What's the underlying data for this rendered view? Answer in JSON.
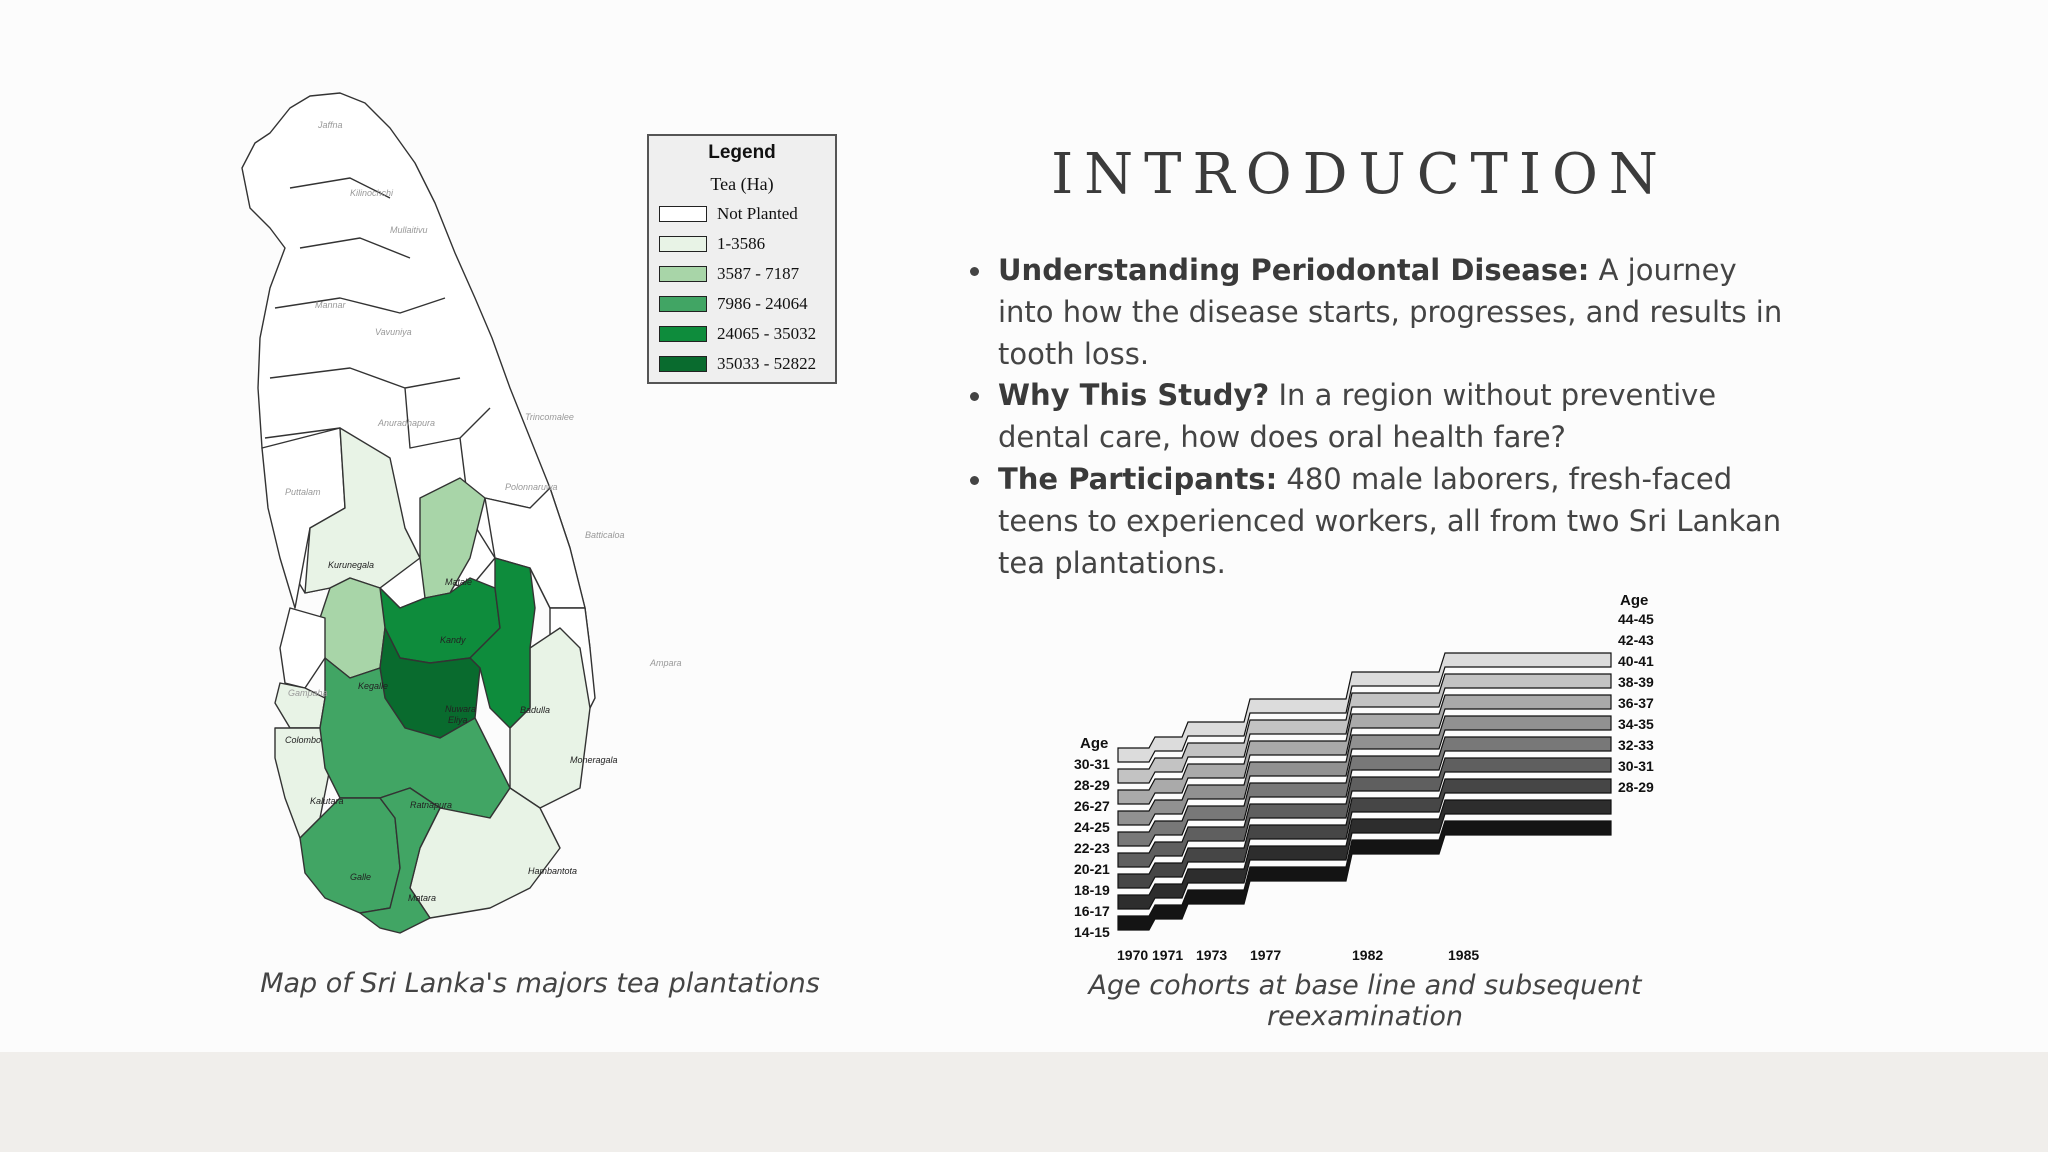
{
  "slide": {
    "title": "INTRODUCTION",
    "bullets": [
      {
        "bold": "Understanding Periodontal Disease:",
        "text": " A journey into how the disease starts, progresses, and results in tooth loss."
      },
      {
        "bold": "Why This Study?",
        "text": " In a region without preventive dental care, how does oral health fare?"
      },
      {
        "bold": "The Participants:",
        "text": " 480 male laborers, fresh-faced teens to experienced workers, all from two Sri Lankan tea plantations."
      }
    ]
  },
  "map": {
    "caption": "Map of Sri Lanka's majors tea plantations",
    "legend": {
      "title": "Legend",
      "subtitle": "Tea (Ha)",
      "items": [
        {
          "label": "Not Planted",
          "color": "#ffffff"
        },
        {
          "label": "1-3586",
          "color": "#e8f3e6"
        },
        {
          "label": "3587 - 7187",
          "color": "#a8d5a8"
        },
        {
          "label": "7986 - 24064",
          "color": "#41a564"
        },
        {
          "label": "24065 - 35032",
          "color": "#0e8c3c"
        },
        {
          "label": "35033 - 52822",
          "color": "#096b2e"
        }
      ]
    },
    "districts": [
      {
        "name": "Jaffna",
        "class": "Not Planted"
      },
      {
        "name": "Kilinochchi",
        "class": "Not Planted"
      },
      {
        "name": "Mullaitivu",
        "class": "Not Planted"
      },
      {
        "name": "Mannar",
        "class": "Not Planted"
      },
      {
        "name": "Vavuniya",
        "class": "Not Planted"
      },
      {
        "name": "Trincomalee",
        "class": "Not Planted"
      },
      {
        "name": "Anuradhapura",
        "class": "Not Planted"
      },
      {
        "name": "Polonnaruwa",
        "class": "Not Planted"
      },
      {
        "name": "Puttalam",
        "class": "Not Planted"
      },
      {
        "name": "Batticaloa",
        "class": "Not Planted"
      },
      {
        "name": "Kurunegala",
        "class": "1-3586"
      },
      {
        "name": "Matale",
        "class": "3587 - 7187"
      },
      {
        "name": "Ampara",
        "class": "Not Planted"
      },
      {
        "name": "Kandy",
        "class": "24065 - 35032"
      },
      {
        "name": "Kegalle",
        "class": "3587 - 7187"
      },
      {
        "name": "Gampaha",
        "class": "Not Planted"
      },
      {
        "name": "Nuwara Eliya",
        "class": "35033 - 52822"
      },
      {
        "name": "Badulla",
        "class": "24065 - 35032"
      },
      {
        "name": "Colombo",
        "class": "1-3586"
      },
      {
        "name": "Moneragala",
        "class": "1-3586"
      },
      {
        "name": "Kalutara",
        "class": "1-3586"
      },
      {
        "name": "Ratnapura",
        "class": "7986 - 24064"
      },
      {
        "name": "Hambantota",
        "class": "1-3586"
      },
      {
        "name": "Galle",
        "class": "7986 - 24064"
      },
      {
        "name": "Matara",
        "class": "7986 - 24064"
      }
    ]
  },
  "cohort_chart": {
    "caption": "Age cohorts at base line and subsequent reexamination",
    "left_header": "Age",
    "right_header": "Age",
    "left_ages": [
      "30-31",
      "28-29",
      "26-27",
      "24-25",
      "22-23",
      "20-21",
      "18-19",
      "16-17",
      "14-15"
    ],
    "right_ages": [
      "44-45",
      "42-43",
      "40-41",
      "38-39",
      "36-37",
      "34-35",
      "32-33",
      "30-31",
      "28-29"
    ],
    "years": [
      "1970",
      "1971",
      "1973",
      "1977",
      "1982",
      "1985"
    ],
    "chart_data": {
      "type": "area",
      "x": [
        1970,
        1971,
        1973,
        1977,
        1982,
        1985
      ],
      "series_start_ages": [
        "14-15",
        "16-17",
        "18-19",
        "20-21",
        "22-23",
        "24-25",
        "26-27",
        "28-29",
        "30-31"
      ],
      "age_offset_years": [
        0,
        1,
        3,
        7,
        12,
        15
      ]
    }
  }
}
